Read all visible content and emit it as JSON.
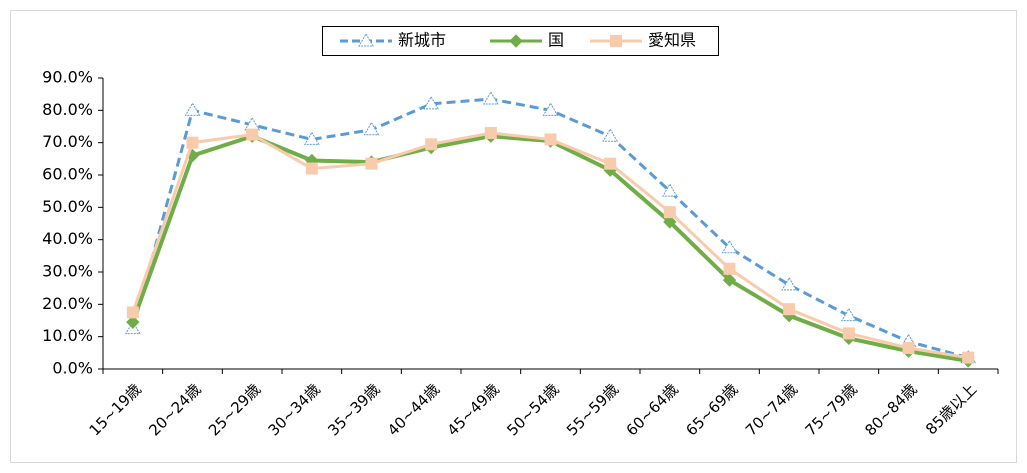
{
  "chart_data": {
    "type": "line",
    "categories": [
      "15~19歳",
      "20~24歳",
      "25~29歳",
      "30~34歳",
      "35~39歳",
      "40~44歳",
      "45~49歳",
      "50~54歳",
      "55~59歳",
      "60~64歳",
      "65~69歳",
      "70~74歳",
      "75~79歳",
      "80~84歳",
      "85歳以上"
    ],
    "series": [
      {
        "name": "新城市",
        "color": "#5b9bd5",
        "dash": true,
        "marker": "triangle",
        "values": [
          12.5,
          80,
          75.5,
          71,
          74,
          82,
          83.5,
          80,
          72,
          55,
          37.5,
          26,
          16.5,
          8.5,
          3.5
        ]
      },
      {
        "name": "国",
        "color": "#70ad47",
        "dash": false,
        "marker": "diamond",
        "values": [
          14.5,
          66,
          72,
          64.5,
          64,
          68.5,
          72,
          70.5,
          61.5,
          45.5,
          27.5,
          16.5,
          9.5,
          5.5,
          2.5
        ]
      },
      {
        "name": "愛知県",
        "color": "#f8cbad",
        "dash": false,
        "marker": "square",
        "values": [
          17.5,
          70,
          72.5,
          62,
          63.5,
          69.5,
          73,
          71,
          63.5,
          48.5,
          31,
          18.5,
          11,
          6.5,
          3.5
        ]
      }
    ],
    "ylim": [
      0,
      90
    ],
    "yticks": [
      {
        "value": 0,
        "label": "0.0%"
      },
      {
        "value": 10,
        "label": "10.0%"
      },
      {
        "value": 20,
        "label": "20.0%"
      },
      {
        "value": 30,
        "label": "30.0%"
      },
      {
        "value": 40,
        "label": "40.0%"
      },
      {
        "value": 50,
        "label": "50.0%"
      },
      {
        "value": 60,
        "label": "60.0%"
      },
      {
        "value": 70,
        "label": "70.0%"
      },
      {
        "value": 80,
        "label": "80.0%"
      },
      {
        "value": 90,
        "label": "90.0%"
      }
    ],
    "grid": false,
    "legend": "top"
  }
}
